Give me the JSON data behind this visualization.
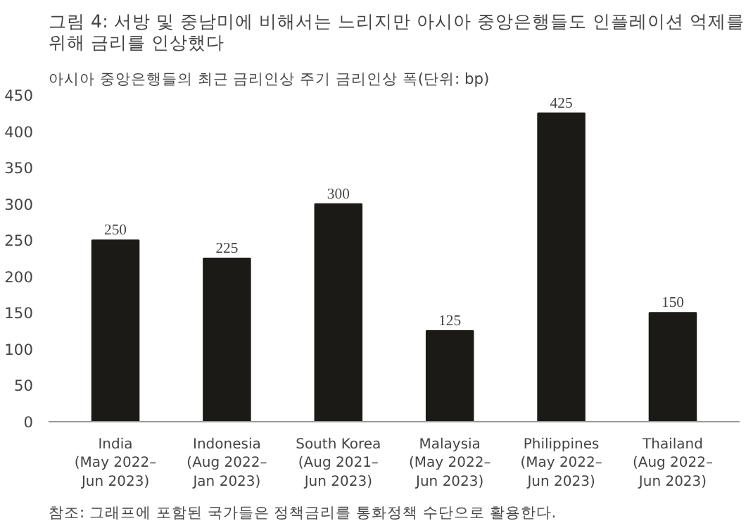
{
  "chart_data": {
    "type": "bar",
    "title": "그림 4: 서방 및 중남미에 비해서는 느리지만 아시아 중앙은행들도 인플레이션 억제를 위해 금리를 인상했다",
    "subtitle": "아시아 중앙은행들의 최근 금리인상 주기 금리인상 폭(단위: bp)",
    "categories": [
      "India\n(May 2022–\nJun 2023)",
      "Indonesia\n(Aug 2022–\nJan 2023)",
      "South Korea\n(Aug 2021–\nJun 2023)",
      "Malaysia\n(May 2022–\nJun 2023)",
      "Philippines\n(May 2022–\nJun 2023)",
      "Thailand\n(Aug 2022–\nJun 2023)"
    ],
    "values": [
      250,
      225,
      300,
      125,
      425,
      150
    ],
    "color": "#1c1a17",
    "ylim": [
      0,
      450
    ],
    "yticks": [
      0,
      50,
      100,
      150,
      200,
      250,
      300,
      350,
      400,
      450
    ],
    "grid": false,
    "data_labels": true,
    "annotations": [
      "참조: 그래프에 포함된 국가들은 정책금리를 통화정책 수단으로 활용한다."
    ]
  }
}
